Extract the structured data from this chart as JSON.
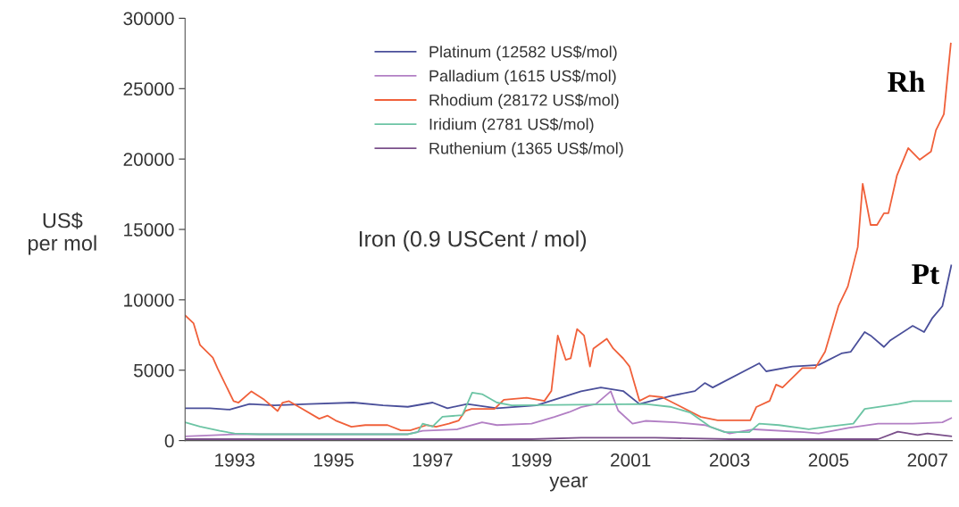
{
  "chart_data": {
    "type": "line",
    "xlabel": "year",
    "ylabel": "US$\nper mol",
    "xlim": [
      1992,
      2007.5
    ],
    "xticks": [
      1993,
      1995,
      1997,
      1999,
      2001,
      2003,
      2005,
      2007
    ],
    "ylim": [
      0,
      30000
    ],
    "yticks": [
      0,
      5000,
      10000,
      15000,
      20000,
      25000,
      30000
    ],
    "grid": false,
    "legend": "top",
    "marker": "none",
    "line_style": "solid",
    "annotations": [
      "Iron (0.9 USCent / mol)",
      "Rh",
      "Pt"
    ],
    "series": [
      {
        "name": "Platinum (12582 US$/mol)",
        "color": "#4a4f9a",
        "x": [
          1992.0,
          1992.5,
          1992.9,
          1993.3,
          1993.8,
          1994.5,
          1995.4,
          1996.0,
          1996.5,
          1997.0,
          1997.3,
          1997.7,
          1998.3,
          1999.1,
          1999.5,
          2000.0,
          2000.4,
          2000.85,
          2001.18,
          2001.83,
          2002.3,
          2002.5,
          2002.66,
          2003.6,
          2003.74,
          2004.27,
          2004.8,
          2005.26,
          2005.45,
          2005.73,
          2005.85,
          2006.12,
          2006.25,
          2006.7,
          2006.93,
          2007.1,
          2007.3,
          2007.48
        ],
        "values": [
          2300,
          2300,
          2200,
          2600,
          2500,
          2600,
          2700,
          2500,
          2400,
          2700,
          2300,
          2600,
          2300,
          2500,
          2950,
          3500,
          3770,
          3520,
          2600,
          3180,
          3520,
          4090,
          3770,
          5490,
          4920,
          5260,
          5370,
          6190,
          6310,
          7710,
          7460,
          6650,
          7130,
          8150,
          7710,
          8720,
          9550,
          12440
        ]
      },
      {
        "name": "Palladium (1615 US$/mol)",
        "color": "#b27fc4",
        "x": [
          1992.0,
          1993.0,
          1996.5,
          1996.8,
          1997.5,
          1998.0,
          1998.3,
          1999.0,
          1999.46,
          1999.76,
          2000.0,
          2000.3,
          2000.6,
          2000.75,
          2001.04,
          2001.3,
          2001.9,
          2002.5,
          2003.0,
          2003.5,
          2004.5,
          2004.8,
          2005.4,
          2006.0,
          2006.7,
          2007.3,
          2007.48
        ],
        "values": [
          300,
          450,
          450,
          700,
          800,
          1300,
          1100,
          1200,
          1680,
          2020,
          2380,
          2600,
          3500,
          2130,
          1200,
          1400,
          1300,
          1100,
          500,
          800,
          600,
          500,
          900,
          1200,
          1200,
          1300,
          1600
        ]
      },
      {
        "name": "Rhodium (28172 US$/mol)",
        "color": "#f0603a",
        "x": [
          1992.0,
          1992.17,
          1992.3,
          1992.56,
          1992.66,
          1992.98,
          1993.08,
          1993.34,
          1993.6,
          1993.87,
          1993.97,
          1994.1,
          1994.32,
          1994.71,
          1994.88,
          1995.04,
          1995.36,
          1995.64,
          1996.09,
          1996.36,
          1996.55,
          1996.88,
          1997.07,
          1997.33,
          1997.53,
          1997.66,
          1997.79,
          1998.25,
          1998.44,
          1998.9,
          1999.26,
          1999.4,
          1999.53,
          1999.69,
          1999.79,
          1999.92,
          2000.06,
          2000.18,
          2000.25,
          2000.52,
          2000.65,
          2000.85,
          2000.98,
          2001.18,
          2001.38,
          2001.64,
          2002.03,
          2002.42,
          2002.76,
          2003.42,
          2003.54,
          2003.81,
          2003.94,
          2004.07,
          2004.47,
          2004.73,
          2004.93,
          2005.2,
          2005.39,
          2005.59,
          2005.69,
          2005.85,
          2005.98,
          2006.12,
          2006.21,
          2006.38,
          2006.61,
          2006.84,
          2007.07,
          2007.17,
          2007.33,
          2007.47
        ],
        "values": [
          8900,
          8340,
          6800,
          5900,
          5100,
          2800,
          2700,
          3500,
          2900,
          2100,
          2700,
          2800,
          2350,
          1550,
          1770,
          1430,
          980,
          1100,
          1100,
          730,
          730,
          1100,
          980,
          1200,
          1430,
          2100,
          2250,
          2250,
          2900,
          3040,
          2820,
          3520,
          7460,
          5740,
          5840,
          7920,
          7460,
          5260,
          6540,
          7230,
          6540,
          5840,
          5260,
          2820,
          3180,
          3080,
          2380,
          1680,
          1440,
          1440,
          2380,
          2820,
          3980,
          3770,
          5150,
          5150,
          6310,
          9550,
          10950,
          13740,
          18240,
          15320,
          15320,
          16150,
          16150,
          18810,
          20780,
          19950,
          20530,
          22050,
          23190,
          28200
        ]
      },
      {
        "name": "Iridium (2781 US$/mol)",
        "color": "#6cc4a4",
        "x": [
          1992.0,
          1992.3,
          1992.7,
          1993.0,
          1993.5,
          1996.5,
          1996.7,
          1996.8,
          1997.0,
          1997.2,
          1997.6,
          1997.8,
          1998.0,
          1998.3,
          1998.6,
          2001.3,
          2001.8,
          2002.2,
          2002.6,
          2002.9,
          2003.4,
          2003.6,
          2004.0,
          2004.6,
          2005.0,
          2005.5,
          2005.73,
          2006.41,
          2006.7,
          2007.48
        ],
        "values": [
          1300,
          1000,
          700,
          500,
          450,
          450,
          600,
          1200,
          1000,
          1700,
          1800,
          3400,
          3300,
          2700,
          2500,
          2600,
          2400,
          2000,
          1000,
          600,
          600,
          1200,
          1100,
          800,
          1000,
          1200,
          2250,
          2600,
          2800,
          2800
        ]
      },
      {
        "name": "Ruthenium (1365 US$/mol)",
        "color": "#7a4f8a",
        "x": [
          1992.0,
          1999.0,
          2000.0,
          2001.5,
          2003.0,
          2006.0,
          2006.4,
          2006.8,
          2007.0,
          2007.48
        ],
        "values": [
          100,
          100,
          200,
          200,
          100,
          100,
          630,
          400,
          500,
          300
        ]
      }
    ]
  }
}
